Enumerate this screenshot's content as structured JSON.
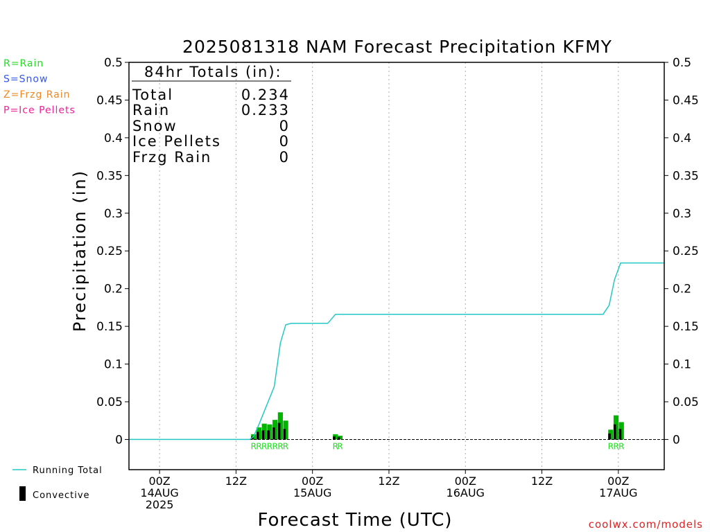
{
  "title": "2025081318 NAM Forecast Precipitation KFMY",
  "ylabel": "Precipitation (in)",
  "xlabel": "Forecast Time (UTC)",
  "credit": "coolwx.com/models",
  "legend_types": [
    {
      "label": "R=Rain",
      "color": "#22dd22"
    },
    {
      "label": "S=Snow",
      "color": "#3355ee"
    },
    {
      "label": "Z=Frzg Rain",
      "color": "#ee8822"
    },
    {
      "label": "P=Ice Pellets",
      "color": "#ee2299"
    }
  ],
  "bottom_legend": {
    "running_total": "Running Total",
    "convective": "Convective"
  },
  "totals": {
    "header": "84hr Totals (in):",
    "rows": [
      {
        "label": "Total",
        "value": "0.234"
      },
      {
        "label": "Rain",
        "value": "0.233"
      },
      {
        "label": "Snow",
        "value": "0"
      },
      {
        "label": "Ice Pellets",
        "value": "0"
      },
      {
        "label": "Frzg Rain",
        "value": "0"
      }
    ]
  },
  "colors": {
    "running_total": "#22c8c8",
    "bar": "#00b400",
    "convective": "#000000",
    "grid": "#aaaaaa"
  },
  "chart_data": {
    "type": "bar",
    "x_unit": "hours from 2025-08-14 00Z",
    "xlim": [
      -4,
      66
    ],
    "ylim": [
      -0.04,
      0.5
    ],
    "yticks": [
      "0",
      "0.05",
      "0.1",
      "0.15",
      "0.2",
      "0.25",
      "0.3",
      "0.35",
      "0.4",
      "0.45",
      "0.5"
    ],
    "xticks": [
      {
        "x": 0,
        "lines": [
          "00Z",
          "14AUG",
          "2025"
        ]
      },
      {
        "x": 10,
        "lines": [
          "12Z"
        ]
      },
      {
        "x": 20,
        "lines": [
          "00Z",
          "15AUG"
        ]
      },
      {
        "x": 30,
        "lines": [
          "12Z"
        ]
      },
      {
        "x": 40,
        "lines": [
          "00Z",
          "16AUG"
        ]
      },
      {
        "x": 50,
        "lines": [
          "12Z"
        ]
      },
      {
        "x": 60,
        "lines": [
          "00Z",
          "17AUG"
        ]
      }
    ],
    "grid": true,
    "bars": [
      {
        "x": 12.3,
        "total": 0.007,
        "convective": 0.004,
        "type": "R"
      },
      {
        "x": 13.0,
        "total": 0.016,
        "convective": 0.01,
        "type": "R"
      },
      {
        "x": 13.7,
        "total": 0.021,
        "convective": 0.012,
        "type": "R"
      },
      {
        "x": 14.4,
        "total": 0.02,
        "convective": 0.012,
        "type": "R"
      },
      {
        "x": 15.1,
        "total": 0.026,
        "convective": 0.016,
        "type": "R"
      },
      {
        "x": 15.8,
        "total": 0.036,
        "convective": 0.022,
        "type": "R"
      },
      {
        "x": 16.5,
        "total": 0.025,
        "convective": 0.014,
        "type": "R"
      },
      {
        "x": 23.0,
        "total": 0.007,
        "convective": 0.004,
        "type": "R"
      },
      {
        "x": 23.6,
        "total": 0.005,
        "convective": 0.003,
        "type": "R"
      },
      {
        "x": 59.0,
        "total": 0.013,
        "convective": 0.008,
        "type": "R"
      },
      {
        "x": 59.7,
        "total": 0.032,
        "convective": 0.02,
        "type": "R"
      },
      {
        "x": 60.4,
        "total": 0.023,
        "convective": 0.014,
        "type": "R"
      }
    ],
    "running_total": {
      "x": [
        -4,
        11.8,
        12.3,
        13.0,
        14.0,
        15.0,
        15.8,
        16.5,
        17.2,
        22.0,
        23.0,
        58.0,
        58.8,
        59.5,
        60.3,
        66
      ],
      "y": [
        0,
        0,
        0.004,
        0.02,
        0.045,
        0.07,
        0.128,
        0.152,
        0.154,
        0.154,
        0.166,
        0.166,
        0.178,
        0.212,
        0.234,
        0.234
      ]
    }
  }
}
